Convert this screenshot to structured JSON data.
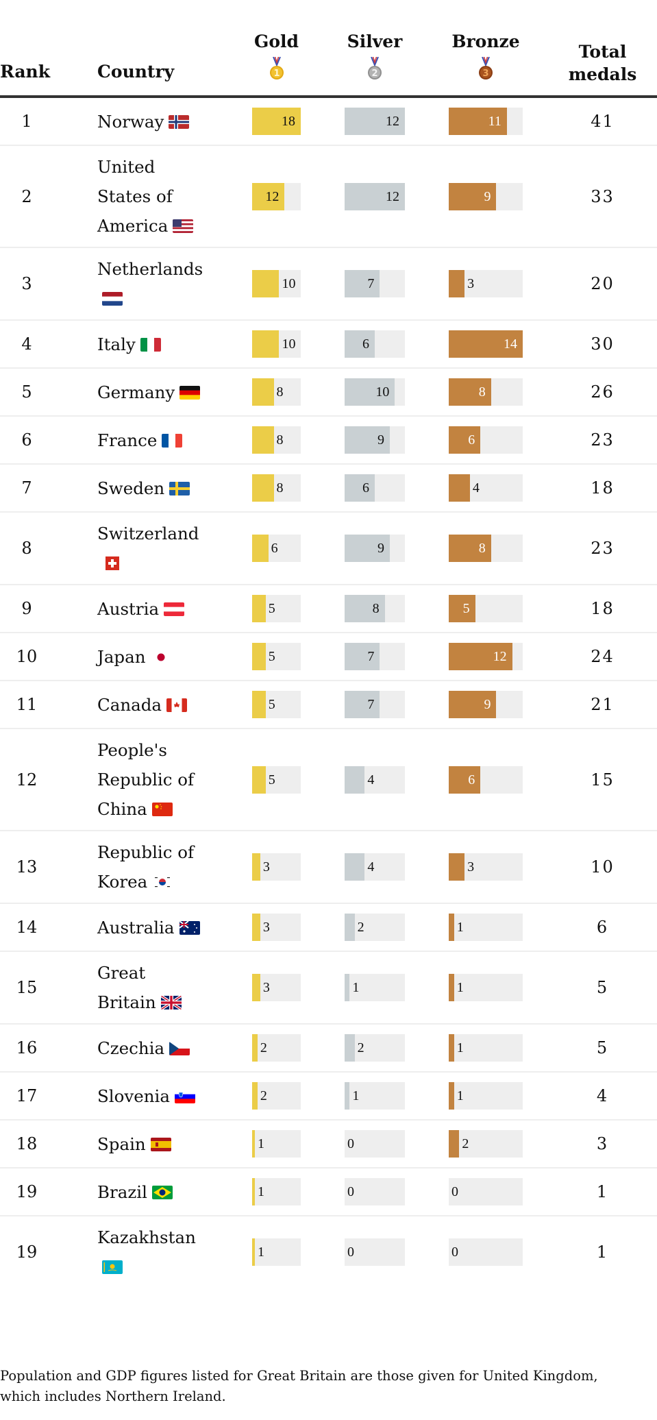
{
  "colors": {
    "gold": "#ebcd48",
    "silver": "#c9d0d3",
    "bronze": "#c28340",
    "track": "#eeeeee",
    "header_rule": "#333333",
    "row_rule": "#eeeeee"
  },
  "header": {
    "rank": "Rank",
    "country": "Country",
    "gold": "Gold",
    "silver": "Silver",
    "bronze": "Bronze",
    "total": "Total medals",
    "gold_icon": "gold-medal-icon",
    "silver_icon": "silver-medal-icon",
    "bronze_icon": "bronze-medal-icon"
  },
  "footnote": "Population and GDP figures listed for Great Britain are those given for United Kingdom, which includes Northern Ireland.",
  "chart_data": {
    "type": "table",
    "title": "",
    "columns": [
      "Rank",
      "Country",
      "Gold",
      "Silver",
      "Bronze",
      "Total medals"
    ],
    "bar_scale_max": {
      "gold": 18,
      "silver": 12,
      "bronze": 14
    },
    "rows": [
      {
        "rank": "1",
        "country": "Norway",
        "flag": "NO",
        "gold": 18,
        "silver": 12,
        "bronze": 11,
        "total": 41
      },
      {
        "rank": "2",
        "country": "United States of America",
        "flag": "US",
        "gold": 12,
        "silver": 12,
        "bronze": 9,
        "total": 33
      },
      {
        "rank": "3",
        "country": "Netherlands",
        "flag": "NL",
        "gold": 10,
        "silver": 7,
        "bronze": 3,
        "total": 20
      },
      {
        "rank": "4",
        "country": "Italy",
        "flag": "IT",
        "gold": 10,
        "silver": 6,
        "bronze": 14,
        "total": 30
      },
      {
        "rank": "5",
        "country": "Germany",
        "flag": "DE",
        "gold": 8,
        "silver": 10,
        "bronze": 8,
        "total": 26
      },
      {
        "rank": "6",
        "country": "France",
        "flag": "FR",
        "gold": 8,
        "silver": 9,
        "bronze": 6,
        "total": 23
      },
      {
        "rank": "7",
        "country": "Sweden",
        "flag": "SE",
        "gold": 8,
        "silver": 6,
        "bronze": 4,
        "total": 18
      },
      {
        "rank": "8",
        "country": "Switzerland",
        "flag": "CH",
        "gold": 6,
        "silver": 9,
        "bronze": 8,
        "total": 23
      },
      {
        "rank": "9",
        "country": "Austria",
        "flag": "AT",
        "gold": 5,
        "silver": 8,
        "bronze": 5,
        "total": 18
      },
      {
        "rank": "10",
        "country": "Japan",
        "flag": "JP",
        "gold": 5,
        "silver": 7,
        "bronze": 12,
        "total": 24
      },
      {
        "rank": "11",
        "country": "Canada",
        "flag": "CA",
        "gold": 5,
        "silver": 7,
        "bronze": 9,
        "total": 21
      },
      {
        "rank": "12",
        "country": "People's Republic of China",
        "flag": "CN",
        "gold": 5,
        "silver": 4,
        "bronze": 6,
        "total": 15
      },
      {
        "rank": "13",
        "country": "Republic of Korea",
        "flag": "KR",
        "gold": 3,
        "silver": 4,
        "bronze": 3,
        "total": 10
      },
      {
        "rank": "14",
        "country": "Australia",
        "flag": "AU",
        "gold": 3,
        "silver": 2,
        "bronze": 1,
        "total": 6
      },
      {
        "rank": "15",
        "country": "Great Britain",
        "flag": "GB",
        "gold": 3,
        "silver": 1,
        "bronze": 1,
        "total": 5
      },
      {
        "rank": "16",
        "country": "Czechia",
        "flag": "CZ",
        "gold": 2,
        "silver": 2,
        "bronze": 1,
        "total": 5
      },
      {
        "rank": "17",
        "country": "Slovenia",
        "flag": "SI",
        "gold": 2,
        "silver": 1,
        "bronze": 1,
        "total": 4
      },
      {
        "rank": "18",
        "country": "Spain",
        "flag": "ES",
        "gold": 1,
        "silver": 0,
        "bronze": 2,
        "total": 3
      },
      {
        "rank": "19",
        "country": "Brazil",
        "flag": "BR",
        "gold": 1,
        "silver": 0,
        "bronze": 0,
        "total": 1
      },
      {
        "rank": "19",
        "country": "Kazakhstan",
        "flag": "KZ",
        "gold": 1,
        "silver": 0,
        "bronze": 0,
        "total": 1
      }
    ]
  }
}
